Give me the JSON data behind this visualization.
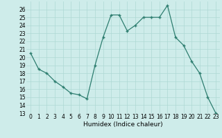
{
  "x": [
    0,
    1,
    2,
    3,
    4,
    5,
    6,
    7,
    8,
    9,
    10,
    11,
    12,
    13,
    14,
    15,
    16,
    17,
    18,
    19,
    20,
    21,
    22,
    23
  ],
  "y": [
    20.5,
    18.5,
    18.0,
    17.0,
    16.3,
    15.5,
    15.3,
    14.8,
    19.0,
    22.5,
    25.3,
    25.3,
    23.3,
    24.0,
    25.0,
    25.0,
    25.0,
    26.5,
    22.5,
    21.5,
    19.5,
    18.0,
    15.0,
    13.0
  ],
  "line_color": "#2d7d6f",
  "marker": "+",
  "marker_size": 3,
  "marker_lw": 1.0,
  "line_width": 0.9,
  "bg_color": "#ceecea",
  "grid_color": "#aed8d4",
  "xlabel": "Humidex (Indice chaleur)",
  "xlim": [
    -0.5,
    23.5
  ],
  "ylim": [
    13,
    27
  ],
  "yticks": [
    13,
    14,
    15,
    16,
    17,
    18,
    19,
    20,
    21,
    22,
    23,
    24,
    25,
    26
  ],
  "xticks": [
    0,
    1,
    2,
    3,
    4,
    5,
    6,
    7,
    8,
    9,
    10,
    11,
    12,
    13,
    14,
    15,
    16,
    17,
    18,
    19,
    20,
    21,
    22,
    23
  ],
  "xlabel_fontsize": 6.5,
  "tick_fontsize": 5.5
}
